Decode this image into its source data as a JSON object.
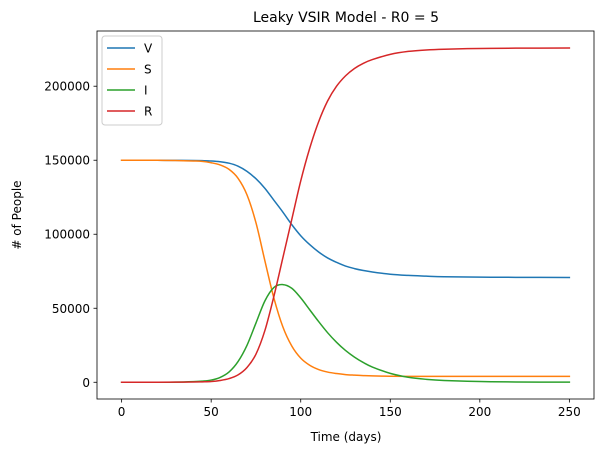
{
  "chart_data": {
    "type": "line",
    "title": "Leaky VSIR Model - R0 = 5",
    "xlabel": "Time (days)",
    "ylabel": "# of People",
    "xlim": [
      -13.75,
      263.75
    ],
    "ylim": [
      -11300,
      237300
    ],
    "xticks": [
      0,
      50,
      100,
      150,
      200,
      250
    ],
    "yticks": [
      0,
      50000,
      100000,
      150000,
      200000
    ],
    "grid": false,
    "legend_position": "top-left",
    "x": [
      0,
      10,
      20,
      30,
      40,
      45,
      50,
      55,
      60,
      65,
      70,
      75,
      80,
      85,
      90,
      95,
      100,
      105,
      110,
      115,
      120,
      125,
      130,
      135,
      140,
      150,
      160,
      170,
      180,
      200,
      220,
      250
    ],
    "series": [
      {
        "name": "V",
        "color": "#1f77b4",
        "values": [
          150000,
          150000,
          149950,
          149900,
          149800,
          149700,
          149500,
          149000,
          148000,
          146000,
          142500,
          137500,
          131000,
          123000,
          115000,
          106500,
          99000,
          93000,
          88000,
          84000,
          81000,
          78500,
          76800,
          75500,
          74500,
          73000,
          72200,
          71700,
          71300,
          71000,
          70900,
          70800
        ]
      },
      {
        "name": "S",
        "color": "#ff7f0e",
        "values": [
          150000,
          150000,
          149950,
          149850,
          149500,
          149200,
          148300,
          146800,
          143800,
          137800,
          126600,
          107800,
          82000,
          57000,
          37500,
          24500,
          16300,
          11500,
          8600,
          6900,
          5900,
          5200,
          4800,
          4500,
          4300,
          4100,
          4000,
          4000,
          4000,
          4000,
          4000,
          4000
        ]
      },
      {
        "name": "I",
        "color": "#2ca02c",
        "values": [
          0,
          10,
          30,
          100,
          450,
          800,
          1500,
          3300,
          7000,
          14000,
          25000,
          40000,
          55000,
          64000,
          66000,
          63500,
          57000,
          49000,
          41000,
          33500,
          27000,
          21500,
          17000,
          13300,
          10300,
          6000,
          3400,
          2000,
          1200,
          500,
          200,
          100
        ]
      },
      {
        "name": "R",
        "color": "#d62728",
        "values": [
          0,
          20,
          50,
          100,
          200,
          300,
          500,
          1200,
          2500,
          5000,
          10000,
          19000,
          35000,
          58000,
          84000,
          110000,
          136000,
          158000,
          176000,
          190000,
          200000,
          207000,
          212000,
          215500,
          218000,
          221500,
          223500,
          224500,
          225000,
          225500,
          225700,
          225800
        ]
      }
    ]
  }
}
